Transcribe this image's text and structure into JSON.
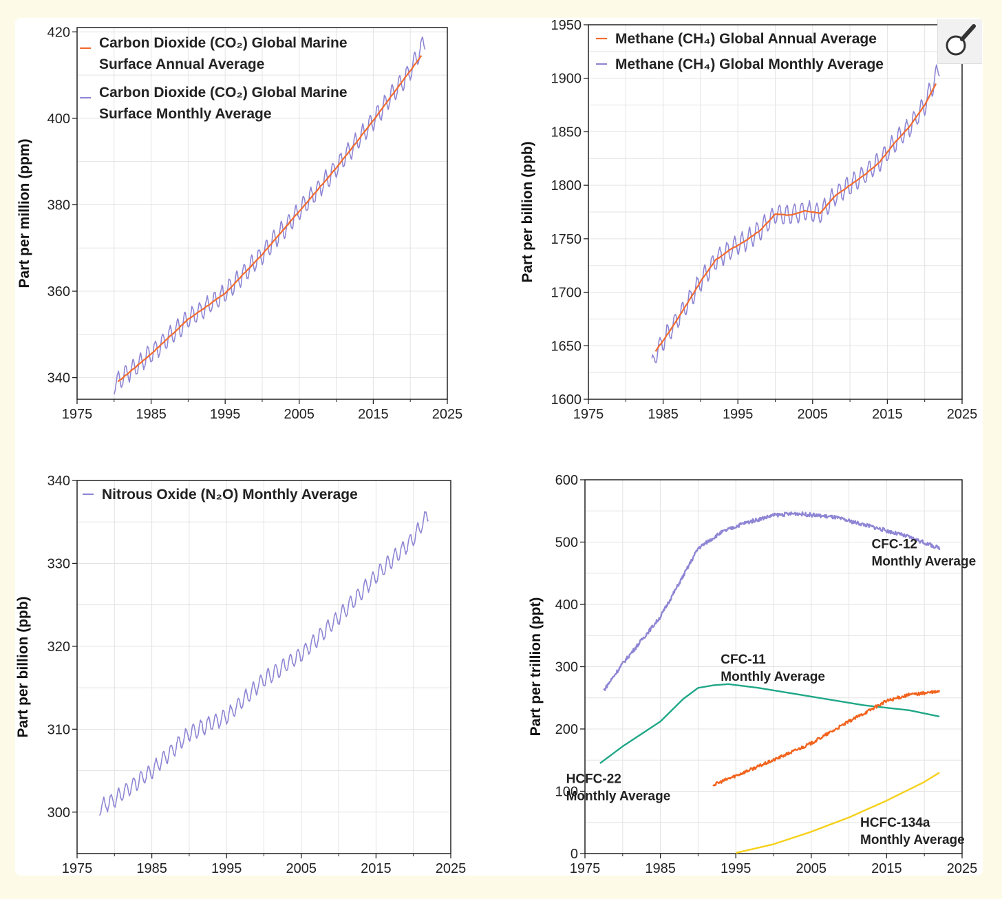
{
  "colors": {
    "annual": "#f26a2e",
    "monthly": "#8e86d4",
    "cfc12": "#8e86d4",
    "cfc11": "#1fa787",
    "hcfc22": "#f2631d",
    "hcfc134a": "#f5d11a",
    "grid": "#e3e3e3"
  },
  "zoom": {
    "icon": "magnifier-icon"
  },
  "chart_data": [
    {
      "id": "co2",
      "type": "line",
      "ylabel": "Part per million (ppm)",
      "xlim": [
        1975,
        2025
      ],
      "ylim": [
        335,
        421
      ],
      "xticks": [
        1975,
        1985,
        1995,
        2005,
        2015,
        2025
      ],
      "yticks": [
        340,
        360,
        380,
        400,
        420
      ],
      "legend_position": "top-left",
      "series": [
        {
          "name": "Carbon Dioxide (CO2) Global Marine Surface Annual Average",
          "legend": [
            "Carbon Dioxide (CO₂) Global Marine",
            "Surface Annual Average"
          ],
          "color_key": "annual",
          "kind": "annual",
          "x": [
            1980.5,
            1985,
            1990,
            1995,
            2000,
            2005,
            2010,
            2015,
            2020,
            2021.5
          ],
          "y": [
            339,
            345.5,
            353.5,
            359.5,
            368.5,
            378.5,
            388.5,
            399.5,
            411,
            414.5
          ]
        },
        {
          "name": "Carbon Dioxide (CO2) Global Marine Surface Monthly Average",
          "legend": [
            "Carbon Dioxide (CO₂) Global Marine",
            "Surface Monthly Average"
          ],
          "color_key": "monthly",
          "kind": "monthly",
          "amplitude": 2.2,
          "x": [
            1980,
            1985,
            1990,
            1995,
            2000,
            2005,
            2010,
            2015,
            2020,
            2022
          ],
          "y": [
            338.5,
            345.5,
            353.5,
            359.5,
            368.5,
            378.5,
            388.5,
            399.5,
            411,
            418
          ]
        }
      ]
    },
    {
      "id": "ch4",
      "type": "line",
      "ylabel": "Part per billion (ppb)",
      "xlim": [
        1975,
        2025
      ],
      "ylim": [
        1600,
        1950
      ],
      "xticks": [
        1975,
        1985,
        1995,
        2005,
        2015,
        2025
      ],
      "yticks": [
        1600,
        1650,
        1700,
        1750,
        1800,
        1850,
        1900,
        1950
      ],
      "legend_position": "top-left",
      "series": [
        {
          "name": "Methane (CH4) Global Annual Average",
          "legend": [
            "Methane (CH₄) Global Annual Average"
          ],
          "color_key": "annual",
          "kind": "annual",
          "x": [
            1984,
            1986,
            1988,
            1990,
            1992,
            1994,
            1996,
            1998,
            2000,
            2002,
            2004,
            2006,
            2008,
            2010,
            2012,
            2014,
            2016,
            2018,
            2020,
            2021.5
          ],
          "y": [
            1645,
            1665,
            1687,
            1710,
            1730,
            1740,
            1748,
            1758,
            1773,
            1772,
            1776,
            1774,
            1790,
            1800,
            1810,
            1822,
            1840,
            1855,
            1875,
            1895
          ]
        },
        {
          "name": "Methane (CH4) Global Monthly Average",
          "legend": [
            "Methane (CH₄) Global Monthly Average"
          ],
          "color_key": "monthly",
          "kind": "monthly",
          "amplitude": 9,
          "x": [
            1983.5,
            1984,
            1986,
            1988,
            1990,
            1992,
            1994,
            1996,
            1998,
            2000,
            2002,
            2004,
            2006,
            2008,
            2010,
            2012,
            2014,
            2016,
            2018,
            2020,
            2022
          ],
          "y": [
            1630,
            1643,
            1665,
            1687,
            1710,
            1730,
            1740,
            1748,
            1758,
            1773,
            1772,
            1776,
            1774,
            1790,
            1800,
            1810,
            1822,
            1840,
            1855,
            1875,
            1910
          ]
        }
      ]
    },
    {
      "id": "n2o",
      "type": "line",
      "ylabel": "Part per billion (ppb)",
      "xlim": [
        1975,
        2025
      ],
      "ylim": [
        295,
        340
      ],
      "xticks": [
        1975,
        1985,
        1995,
        2005,
        2015,
        2025
      ],
      "yticks": [
        300,
        310,
        320,
        330,
        340
      ],
      "legend_position": "top-left",
      "series": [
        {
          "name": "Nitrous Oxide (N2O) Monthly Average",
          "legend": [
            "Nitrous Oxide (N₂O) Monthly Average"
          ],
          "color_key": "monthly",
          "kind": "monthly",
          "amplitude": 0.9,
          "x": [
            1978,
            1980,
            1985,
            1990,
            1995,
            2000,
            2005,
            2010,
            2015,
            2020,
            2022
          ],
          "y": [
            300.5,
            301.5,
            305,
            309.5,
            311.5,
            316,
            319,
            323.5,
            328.5,
            333,
            336
          ]
        }
      ]
    },
    {
      "id": "halocarbons",
      "type": "line",
      "ylabel": "Part per trillion (ppt)",
      "xlim": [
        1975,
        2025
      ],
      "ylim": [
        0,
        600
      ],
      "xticks": [
        1975,
        1985,
        1995,
        2005,
        2015,
        2025
      ],
      "yticks": [
        0,
        100,
        200,
        300,
        400,
        500,
        600
      ],
      "series": [
        {
          "name": "CFC-12 Monthly Average",
          "label": [
            "CFC-12",
            "Monthly Average"
          ],
          "label_at": [
            2013,
            490
          ],
          "color_key": "cfc12",
          "kind": "noisy",
          "amplitude": 3,
          "x": [
            1977.5,
            1980,
            1985,
            1988,
            1990,
            1993,
            1996,
            2000,
            2003,
            2008,
            2013,
            2018,
            2022
          ],
          "y": [
            262,
            305,
            380,
            445,
            490,
            515,
            530,
            543,
            546,
            540,
            525,
            508,
            490
          ]
        },
        {
          "name": "CFC-11 Monthly Average",
          "label": [
            "CFC-11",
            "Monthly Average"
          ],
          "label_at": [
            1993,
            305
          ],
          "color_key": "cfc11",
          "kind": "smooth",
          "x": [
            1977,
            1980,
            1985,
            1988,
            1990,
            1992,
            1994,
            1998,
            2005,
            2012,
            2018,
            2022
          ],
          "y": [
            145,
            172,
            212,
            248,
            266,
            270,
            272,
            266,
            252,
            238,
            230,
            220
          ]
        },
        {
          "name": "HCFC-22 Monthly Average",
          "label": [
            "HCFC-22",
            "Monthly Average"
          ],
          "label_at": [
            1972.5,
            113
          ],
          "color_key": "hcfc22",
          "kind": "noisy",
          "amplitude": 2.5,
          "x": [
            1992,
            1995,
            2000,
            2005,
            2010,
            2015,
            2018,
            2022
          ],
          "y": [
            110,
            125,
            150,
            177,
            212,
            245,
            255,
            260
          ]
        },
        {
          "name": "HCFC-134a Monthly Average",
          "label": [
            "HCFC-134a",
            "Monthly Average"
          ],
          "label_at": [
            2011.5,
            43
          ],
          "color_key": "hcfc134a",
          "kind": "smooth",
          "x": [
            1995,
            2000,
            2005,
            2010,
            2015,
            2020,
            2022
          ],
          "y": [
            1,
            15,
            35,
            58,
            85,
            115,
            130
          ]
        }
      ]
    }
  ]
}
